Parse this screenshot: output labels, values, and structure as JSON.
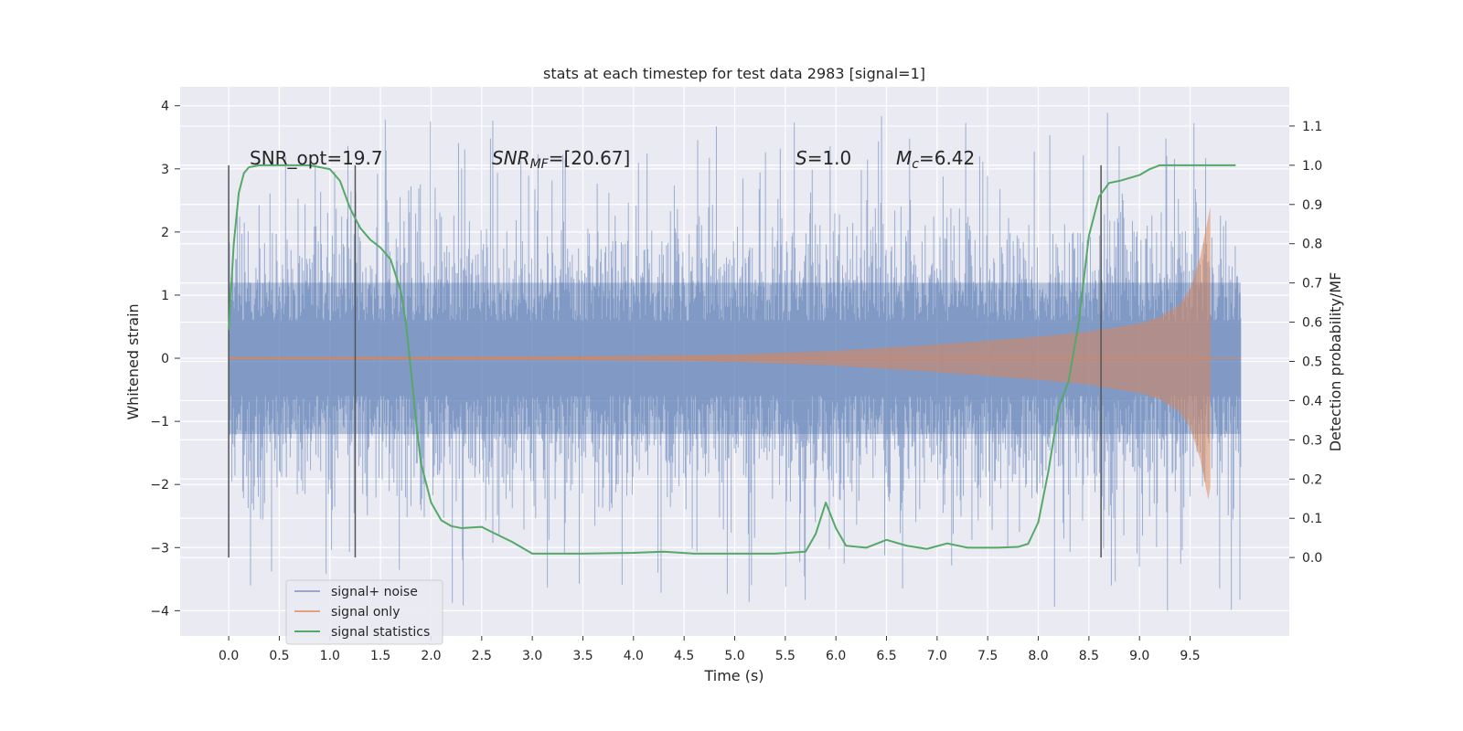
{
  "chart_data": {
    "type": "line",
    "title": "stats at each timestep for test data 2983 [signal=1]",
    "xlabel": "Time (s)",
    "ylabel": "Whitened strain",
    "ylabel_right": "Detection probability/MF",
    "xlim": [
      -0.48,
      10.48
    ],
    "ylim": [
      -4.4,
      4.3
    ],
    "ylim_right": [
      -0.2,
      1.2
    ],
    "x_ticks": [
      "0.0",
      "0.5",
      "1.0",
      "1.5",
      "2.0",
      "2.5",
      "3.0",
      "3.5",
      "4.0",
      "4.5",
      "5.0",
      "5.5",
      "6.0",
      "6.5",
      "7.0",
      "7.5",
      "8.0",
      "8.5",
      "9.0",
      "9.5"
    ],
    "y_ticks": [
      "4",
      "3",
      "2",
      "1",
      "0",
      "−1",
      "−2",
      "−3",
      "−4"
    ],
    "y_ticks_right": [
      "1.1",
      "1.0",
      "0.9",
      "0.8",
      "0.7",
      "0.6",
      "0.5",
      "0.4",
      "0.3",
      "0.2",
      "0.1",
      "0.0"
    ],
    "grid": true,
    "legend_position": "lower-left",
    "annotations": {
      "snr_opt": "SNR_opt=19.7",
      "snr_mf_base": "SNR",
      "snr_mf_sub": "MF",
      "snr_mf_value": "=[20.67]",
      "s_symbol": "S",
      "s_value": "=1.0",
      "mc_symbol": "M",
      "mc_sub": "c",
      "mc_value": "=6.42"
    },
    "vertical_markers_x": [
      0.0,
      1.25,
      8.62
    ],
    "series": [
      {
        "name": "signal+ noise",
        "color": "#4c72b0",
        "x_range": [
          0.0,
          10.0
        ],
        "noise_amplitude_typical": 1.2,
        "noise_amplitude_max": 3.9,
        "noise_amplitude_min": -4.0
      },
      {
        "name": "signal only",
        "color": "#dd8452",
        "envelope": {
          "x": [
            0.0,
            3.0,
            4.0,
            5.0,
            6.0,
            7.0,
            7.5,
            8.0,
            8.5,
            9.0,
            9.2,
            9.4,
            9.5,
            9.6,
            9.65,
            9.7
          ],
          "amplitude": [
            0.02,
            0.03,
            0.04,
            0.06,
            0.12,
            0.22,
            0.28,
            0.34,
            0.42,
            0.55,
            0.65,
            0.85,
            1.1,
            1.6,
            2.0,
            2.4
          ]
        },
        "end_x": 9.7,
        "x_range_end": 10.0
      },
      {
        "name": "signal statistics",
        "color": "#55a868",
        "x": [
          0.0,
          0.05,
          0.1,
          0.15,
          0.2,
          0.3,
          0.5,
          0.8,
          1.0,
          1.1,
          1.2,
          1.3,
          1.4,
          1.5,
          1.6,
          1.7,
          1.75,
          1.8,
          1.85,
          1.9,
          2.0,
          2.1,
          2.2,
          2.3,
          2.5,
          2.6,
          2.8,
          3.0,
          3.5,
          4.0,
          4.3,
          4.6,
          5.0,
          5.4,
          5.7,
          5.8,
          5.9,
          6.0,
          6.1,
          6.3,
          6.5,
          6.7,
          6.9,
          7.1,
          7.3,
          7.6,
          7.8,
          7.9,
          8.0,
          8.1,
          8.2,
          8.3,
          8.4,
          8.5,
          8.6,
          8.7,
          8.8,
          9.0,
          9.1,
          9.2,
          9.5,
          9.95
        ],
        "values": [
          0.58,
          0.8,
          0.93,
          0.98,
          0.995,
          1.0,
          1.0,
          1.0,
          0.99,
          0.96,
          0.89,
          0.84,
          0.81,
          0.79,
          0.76,
          0.68,
          0.6,
          0.48,
          0.35,
          0.24,
          0.14,
          0.095,
          0.08,
          0.075,
          0.078,
          0.065,
          0.04,
          0.01,
          0.01,
          0.012,
          0.015,
          0.01,
          0.01,
          0.01,
          0.015,
          0.06,
          0.14,
          0.075,
          0.03,
          0.025,
          0.045,
          0.03,
          0.022,
          0.036,
          0.025,
          0.025,
          0.027,
          0.035,
          0.09,
          0.22,
          0.38,
          0.45,
          0.6,
          0.82,
          0.92,
          0.955,
          0.96,
          0.975,
          0.99,
          1.0,
          1.0,
          1.0
        ]
      }
    ]
  }
}
